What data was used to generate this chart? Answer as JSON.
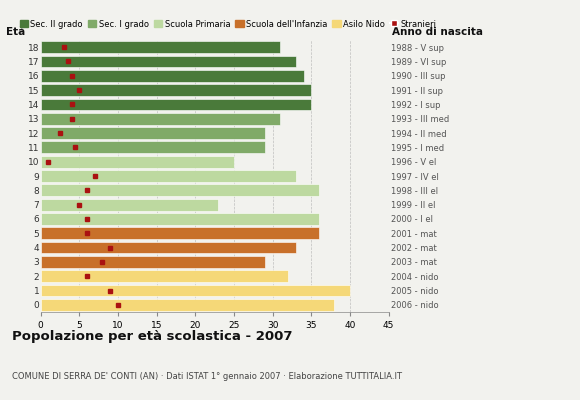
{
  "ages": [
    18,
    17,
    16,
    15,
    14,
    13,
    12,
    11,
    10,
    9,
    8,
    7,
    6,
    5,
    4,
    3,
    2,
    1,
    0
  ],
  "bar_values": [
    31,
    33,
    34,
    35,
    35,
    31,
    29,
    29,
    25,
    33,
    36,
    23,
    36,
    36,
    33,
    29,
    32,
    40,
    38
  ],
  "stranieri": [
    3,
    3.5,
    4,
    5,
    4,
    4,
    2.5,
    4.5,
    1,
    7,
    6,
    5,
    6,
    6,
    9,
    8,
    6,
    9,
    10
  ],
  "anno_nascita": [
    "1988 - V sup",
    "1989 - VI sup",
    "1990 - III sup",
    "1991 - II sup",
    "1992 - I sup",
    "1993 - III med",
    "1994 - II med",
    "1995 - I med",
    "1996 - V el",
    "1997 - IV el",
    "1998 - III el",
    "1999 - II el",
    "2000 - I el",
    "2001 - mat",
    "2002 - mat",
    "2003 - mat",
    "2004 - nido",
    "2005 - nido",
    "2006 - nido"
  ],
  "colors": {
    "sec2": "#4a7a3a",
    "sec1": "#80aa68",
    "primaria": "#bdd9a0",
    "infanzia": "#c8702a",
    "nido": "#f5d878",
    "stranieri": "#aa1111"
  },
  "legend_labels": [
    "Sec. II grado",
    "Sec. I grado",
    "Scuola Primaria",
    "Scuola dell'Infanzia",
    "Asilo Nido",
    "Stranieri"
  ],
  "title": "Popolazione per età scolastica - 2007",
  "subtitle": "COMUNE DI SERRA DE' CONTI (AN) · Dati ISTAT 1° gennaio 2007 · Elaborazione TUTTITALIA.IT",
  "xlabel_eta": "Età",
  "xlabel_anno": "Anno di nascita",
  "xlim": [
    0,
    45
  ],
  "bg_color": "#f2f2ee",
  "grid_color": "#aaaaaa",
  "dashed_lines": [
    35,
    40
  ]
}
